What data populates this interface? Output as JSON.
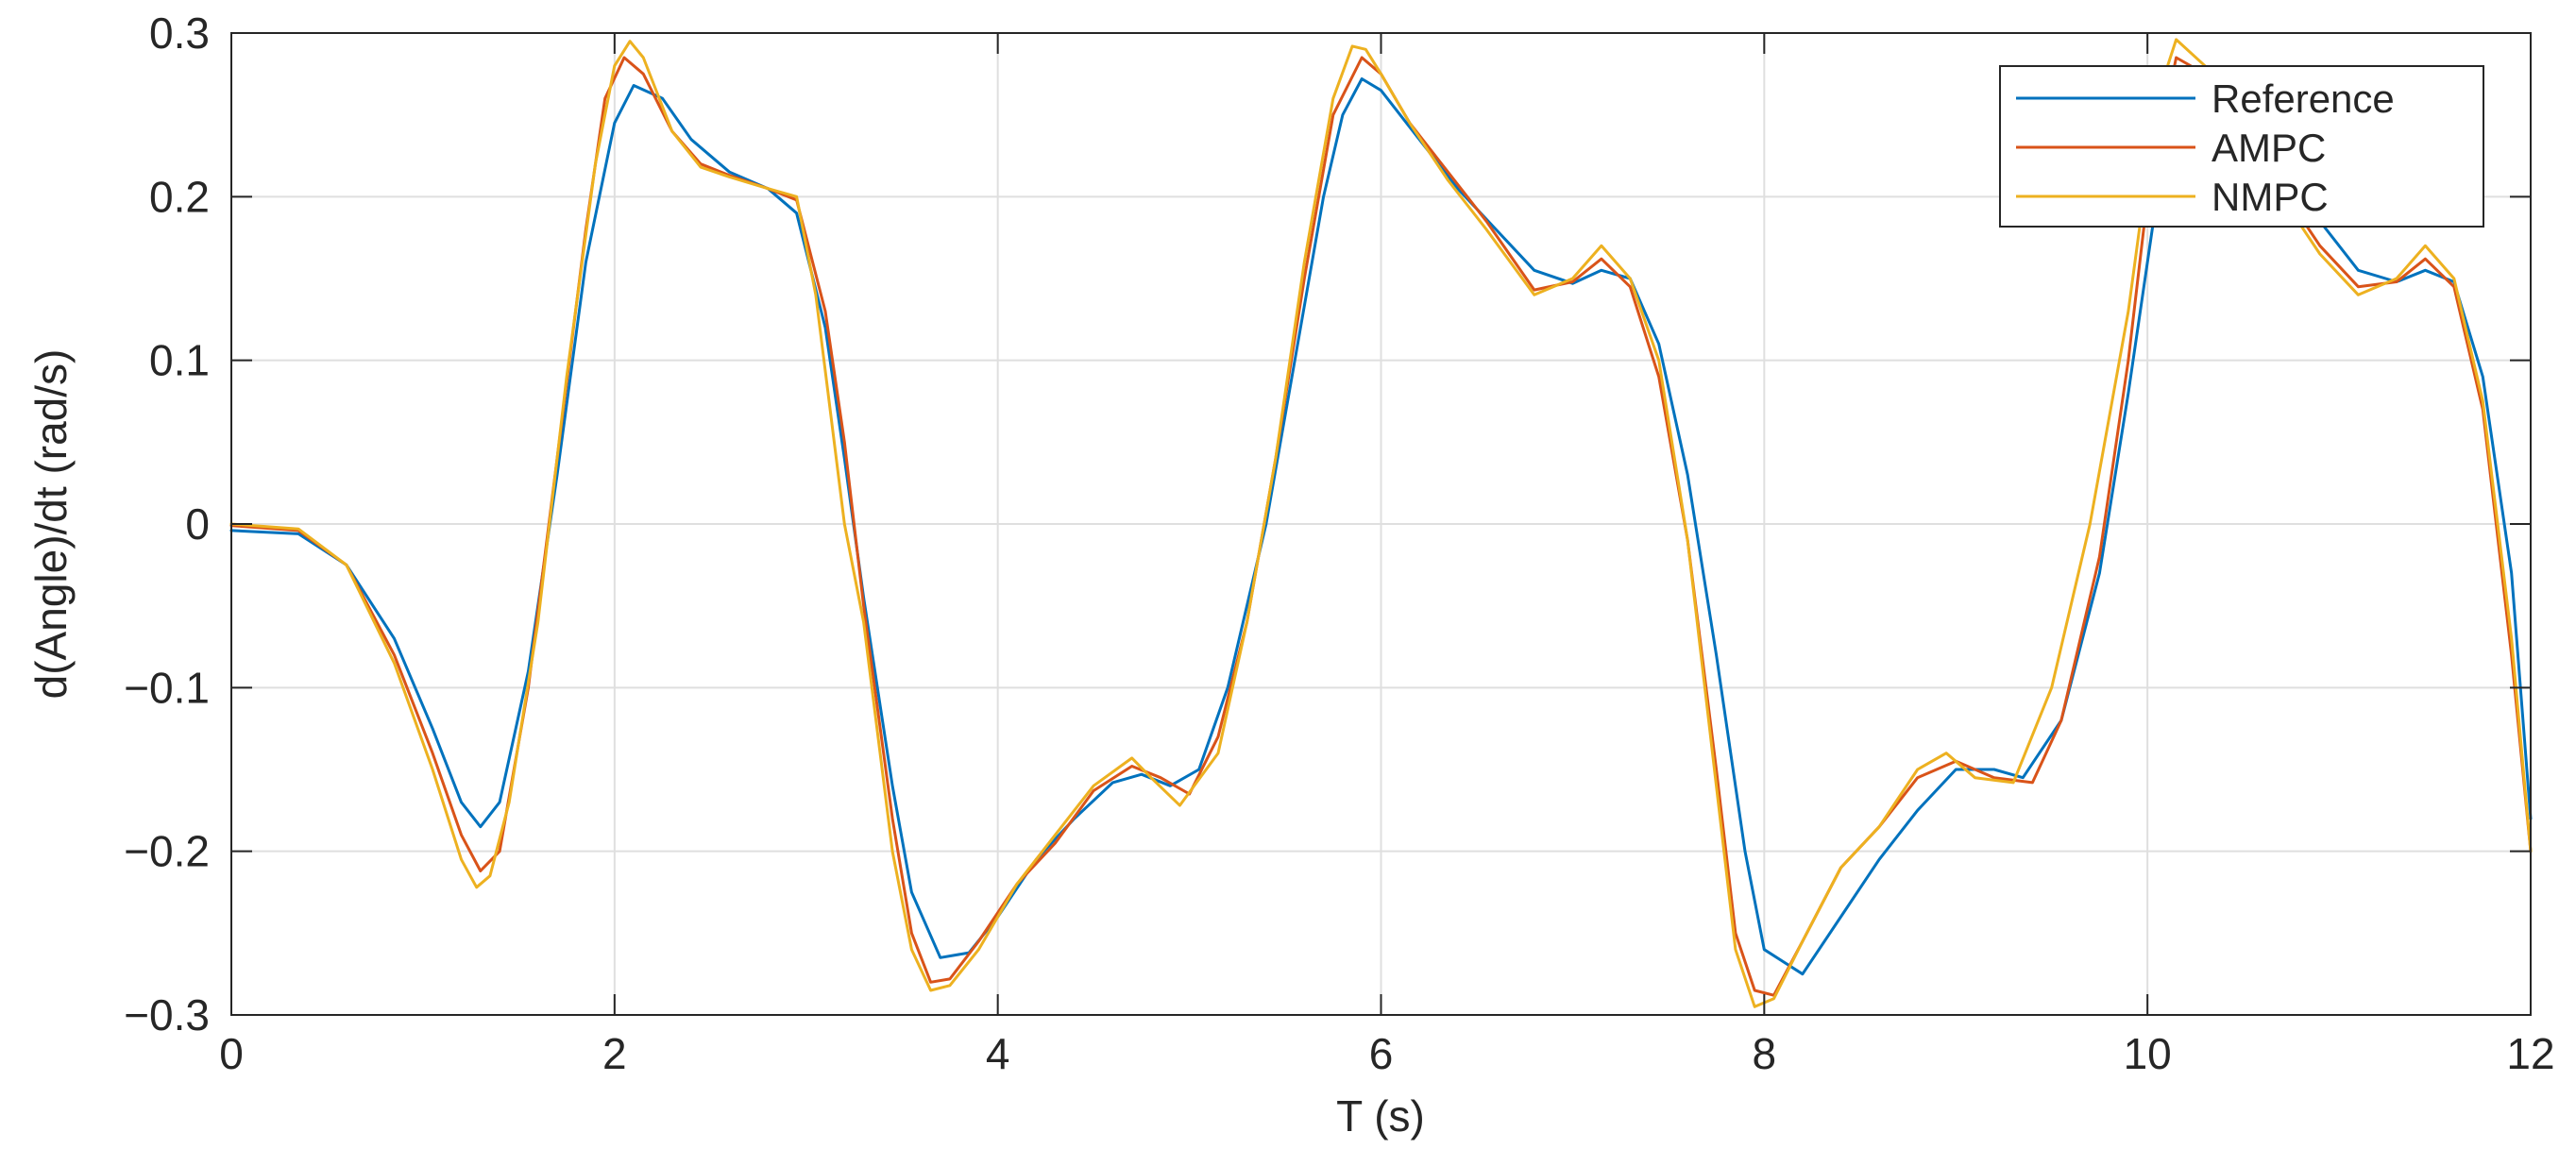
{
  "chart_data": {
    "type": "line",
    "title": "",
    "xlabel": "T (s)",
    "ylabel": "d(Angle)/dt (rad/s)",
    "xlim": [
      0,
      12
    ],
    "ylim": [
      -0.3,
      0.3
    ],
    "grid": true,
    "legend_position": "top-right",
    "xticks": [
      0,
      2,
      4,
      6,
      8,
      10,
      12
    ],
    "xtick_labels": [
      "0",
      "2",
      "4",
      "6",
      "8",
      "10",
      "12"
    ],
    "yticks": [
      -0.3,
      -0.2,
      -0.1,
      0,
      0.1,
      0.2,
      0.3
    ],
    "ytick_labels": [
      "−0.3",
      "−0.2",
      "−0.1",
      "0",
      "0.1",
      "0.2",
      "0.3"
    ],
    "series": [
      {
        "name": "Reference",
        "color": "#0072BD",
        "x": [
          0,
          0.35,
          0.6,
          0.85,
          1.05,
          1.2,
          1.3,
          1.4,
          1.55,
          1.7,
          1.85,
          2.0,
          2.1,
          2.25,
          2.4,
          2.6,
          2.8,
          2.95,
          3.1,
          3.2,
          3.3,
          3.45,
          3.55,
          3.7,
          3.85,
          4.0,
          4.2,
          4.4,
          4.6,
          4.75,
          4.9,
          5.05,
          5.2,
          5.4,
          5.55,
          5.7,
          5.8,
          5.9,
          6.0,
          6.2,
          6.4,
          6.6,
          6.8,
          7.0,
          7.15,
          7.3,
          7.45,
          7.6,
          7.75,
          7.9,
          8.0,
          8.2,
          8.4,
          8.6,
          8.8,
          9.0,
          9.2,
          9.35,
          9.55,
          9.75,
          9.9,
          10.05,
          10.15,
          10.3,
          10.5,
          10.7,
          10.9,
          11.1,
          11.3,
          11.45,
          11.6,
          11.75,
          11.9,
          12.0
        ],
        "y": [
          -0.004,
          -0.006,
          -0.025,
          -0.07,
          -0.125,
          -0.17,
          -0.185,
          -0.17,
          -0.09,
          0.03,
          0.16,
          0.245,
          0.268,
          0.26,
          0.235,
          0.215,
          0.205,
          0.19,
          0.12,
          0.04,
          -0.045,
          -0.16,
          -0.225,
          -0.265,
          -0.262,
          -0.24,
          -0.205,
          -0.18,
          -0.158,
          -0.153,
          -0.16,
          -0.15,
          -0.1,
          0.0,
          0.1,
          0.2,
          0.25,
          0.272,
          0.265,
          0.235,
          0.205,
          0.18,
          0.155,
          0.147,
          0.155,
          0.15,
          0.11,
          0.03,
          -0.08,
          -0.2,
          -0.26,
          -0.275,
          -0.24,
          -0.205,
          -0.175,
          -0.15,
          -0.15,
          -0.155,
          -0.12,
          -0.03,
          0.08,
          0.2,
          0.25,
          0.265,
          0.24,
          0.215,
          0.185,
          0.155,
          0.148,
          0.155,
          0.148,
          0.09,
          -0.03,
          -0.18
        ]
      },
      {
        "name": "AMPC",
        "color": "#D95319",
        "x": [
          0,
          0.35,
          0.6,
          0.85,
          1.05,
          1.2,
          1.3,
          1.4,
          1.55,
          1.7,
          1.85,
          1.95,
          2.05,
          2.15,
          2.3,
          2.45,
          2.6,
          2.8,
          2.95,
          3.1,
          3.2,
          3.3,
          3.45,
          3.55,
          3.65,
          3.75,
          3.9,
          4.1,
          4.3,
          4.5,
          4.7,
          4.85,
          5.0,
          5.15,
          5.3,
          5.45,
          5.6,
          5.75,
          5.9,
          6.0,
          6.15,
          6.35,
          6.55,
          6.8,
          7.0,
          7.15,
          7.3,
          7.45,
          7.6,
          7.75,
          7.85,
          7.95,
          8.05,
          8.2,
          8.4,
          8.6,
          8.8,
          9.0,
          9.2,
          9.4,
          9.55,
          9.75,
          9.9,
          10.0,
          10.15,
          10.3,
          10.5,
          10.7,
          10.9,
          11.1,
          11.3,
          11.45,
          11.6,
          11.75,
          11.9,
          12.0
        ],
        "y": [
          -0.001,
          -0.004,
          -0.025,
          -0.08,
          -0.14,
          -0.19,
          -0.212,
          -0.2,
          -0.1,
          0.04,
          0.18,
          0.26,
          0.285,
          0.275,
          0.24,
          0.22,
          0.213,
          0.205,
          0.198,
          0.13,
          0.05,
          -0.05,
          -0.18,
          -0.25,
          -0.28,
          -0.278,
          -0.255,
          -0.22,
          -0.195,
          -0.163,
          -0.148,
          -0.155,
          -0.165,
          -0.13,
          -0.06,
          0.04,
          0.15,
          0.25,
          0.285,
          0.275,
          0.245,
          0.215,
          0.185,
          0.143,
          0.148,
          0.162,
          0.145,
          0.09,
          -0.01,
          -0.15,
          -0.25,
          -0.285,
          -0.288,
          -0.255,
          -0.21,
          -0.185,
          -0.155,
          -0.145,
          -0.155,
          -0.158,
          -0.12,
          -0.02,
          0.1,
          0.2,
          0.285,
          0.275,
          0.24,
          0.205,
          0.17,
          0.145,
          0.148,
          0.162,
          0.145,
          0.07,
          -0.08,
          -0.2
        ]
      },
      {
        "name": "NMPC",
        "color": "#EDB120",
        "x": [
          0,
          0.35,
          0.6,
          0.85,
          1.05,
          1.2,
          1.28,
          1.35,
          1.45,
          1.6,
          1.75,
          1.9,
          2.0,
          2.08,
          2.15,
          2.3,
          2.45,
          2.6,
          2.8,
          2.95,
          3.05,
          3.2,
          3.3,
          3.45,
          3.55,
          3.65,
          3.75,
          3.9,
          4.1,
          4.3,
          4.5,
          4.7,
          4.8,
          4.95,
          5.15,
          5.3,
          5.45,
          5.6,
          5.75,
          5.85,
          5.92,
          6.0,
          6.15,
          6.35,
          6.55,
          6.8,
          7.0,
          7.15,
          7.3,
          7.45,
          7.6,
          7.75,
          7.85,
          7.95,
          8.05,
          8.2,
          8.4,
          8.6,
          8.8,
          8.95,
          9.1,
          9.3,
          9.5,
          9.7,
          9.9,
          10.05,
          10.15,
          10.3,
          10.5,
          10.7,
          10.9,
          11.1,
          11.3,
          11.45,
          11.6,
          11.75,
          11.9,
          12.0
        ],
        "y": [
          0.0,
          -0.003,
          -0.025,
          -0.085,
          -0.15,
          -0.205,
          -0.222,
          -0.215,
          -0.17,
          -0.06,
          0.09,
          0.22,
          0.28,
          0.295,
          0.285,
          0.24,
          0.218,
          0.212,
          0.205,
          0.2,
          0.14,
          0.0,
          -0.06,
          -0.2,
          -0.26,
          -0.285,
          -0.282,
          -0.26,
          -0.22,
          -0.19,
          -0.16,
          -0.143,
          -0.155,
          -0.172,
          -0.14,
          -0.06,
          0.04,
          0.16,
          0.26,
          0.292,
          0.29,
          0.275,
          0.245,
          0.21,
          0.18,
          0.14,
          0.15,
          0.17,
          0.15,
          0.1,
          -0.01,
          -0.16,
          -0.26,
          -0.295,
          -0.29,
          -0.255,
          -0.21,
          -0.185,
          -0.15,
          -0.14,
          -0.155,
          -0.158,
          -0.1,
          0.0,
          0.13,
          0.26,
          0.296,
          0.28,
          0.24,
          0.2,
          0.165,
          0.14,
          0.15,
          0.17,
          0.15,
          0.075,
          -0.07,
          -0.2
        ]
      }
    ]
  }
}
